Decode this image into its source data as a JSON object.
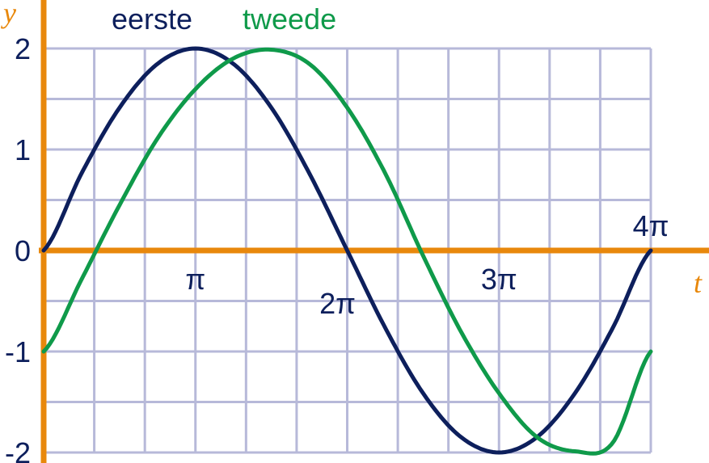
{
  "chart_data": {
    "type": "line",
    "xlabel": "t",
    "ylabel": "y",
    "xlim": [
      0,
      12.566
    ],
    "ylim": [
      -2,
      2
    ],
    "x_ticks": [
      {
        "value": 3.1416,
        "label": "π"
      },
      {
        "value": 6.2832,
        "label": "2π"
      },
      {
        "value": 9.4248,
        "label": "3π"
      },
      {
        "value": 12.5664,
        "label": "4π"
      }
    ],
    "y_ticks": [
      {
        "value": 2,
        "label": "2"
      },
      {
        "value": 1,
        "label": "1"
      },
      {
        "value": 0,
        "label": "0"
      },
      {
        "value": -1,
        "label": "-1"
      },
      {
        "value": -2,
        "label": "-2"
      }
    ],
    "grid": true,
    "series": [
      {
        "name": "eerste",
        "color": "#0d1f5c",
        "x": [
          0,
          0.7854,
          1.5708,
          2.3562,
          3.1416,
          3.927,
          4.7124,
          5.4978,
          6.2832,
          7.0686,
          7.854,
          8.6394,
          9.4248,
          10.2102,
          10.9956,
          11.781,
          12.5664
        ],
        "y": [
          0,
          0.765,
          1.414,
          1.848,
          2,
          1.848,
          1.414,
          0.765,
          0,
          -0.765,
          -1.414,
          -1.848,
          -2,
          -1.848,
          -1.414,
          -0.765,
          0
        ]
      },
      {
        "name": "tweede",
        "color": "#0f9a4a",
        "x": [
          0,
          0.7854,
          1.5708,
          2.3562,
          3.1416,
          3.927,
          4.7124,
          5.4978,
          6.2832,
          7.0686,
          7.854,
          8.6394,
          9.4248,
          10.2102,
          10.9956,
          11.781,
          12.5664
        ],
        "y": [
          -1,
          -0.285,
          0.45,
          1.109,
          1.598,
          1.902,
          1.988,
          1.848,
          1.414,
          0.765,
          -0.052,
          -0.805,
          -1.414,
          -1.848,
          -1.988,
          -1.902,
          -1
        ]
      }
    ],
    "colors": {
      "axis": "#e8880c",
      "grid": "#b7b9d9",
      "tick_text": "#0d1f5c"
    }
  }
}
